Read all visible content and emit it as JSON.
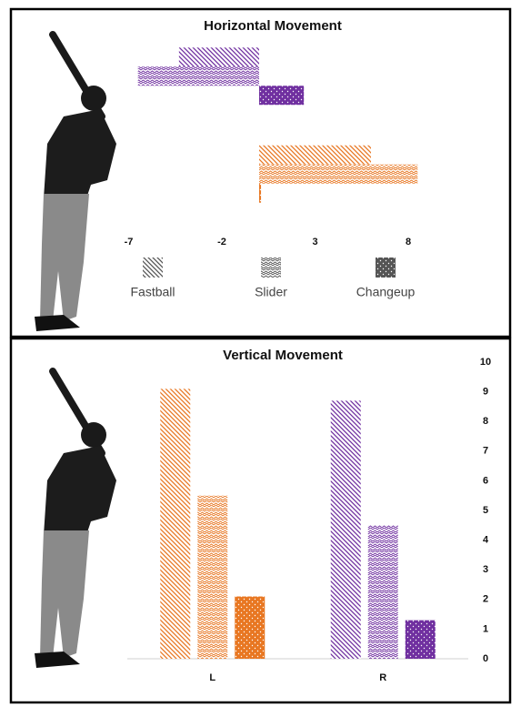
{
  "chart_data": [
    {
      "type": "barh",
      "title": "Horizontal Movement",
      "categories": [
        null,
        null
      ],
      "series": [
        {
          "name": "Fastball",
          "colors": [
            "#7030a0",
            "#e87722"
          ],
          "values": [
            -4.3,
            6.0
          ]
        },
        {
          "name": "Slider",
          "colors": [
            "#7030a0",
            "#e87722"
          ],
          "values": [
            -6.5,
            8.5
          ]
        },
        {
          "name": "Changeup",
          "colors": [
            "#7030a0",
            "#e87722"
          ],
          "values": [
            2.4,
            0.1
          ]
        }
      ],
      "xlim": [
        -8,
        9
      ],
      "xticks": [
        -7,
        -2,
        3,
        8
      ],
      "legend": "bottom",
      "legend_color": "#555555"
    },
    {
      "type": "bar",
      "title": "Vertical Movement",
      "categories": [
        "L",
        "R"
      ],
      "series": [
        {
          "colors": [
            "#e87722",
            "#7030a0"
          ],
          "values": [
            9.1,
            8.7
          ]
        },
        {
          "colors": [
            "#e87722",
            "#7030a0"
          ],
          "values": [
            5.5,
            4.5
          ]
        },
        {
          "colors": [
            "#e87722",
            "#7030a0"
          ],
          "values": [
            2.1,
            1.3
          ]
        }
      ],
      "ylim": [
        0,
        10
      ],
      "yticks": [
        0,
        1,
        2,
        3,
        4,
        5,
        6,
        7,
        8,
        9,
        10
      ],
      "yaxis_side": "right"
    }
  ]
}
